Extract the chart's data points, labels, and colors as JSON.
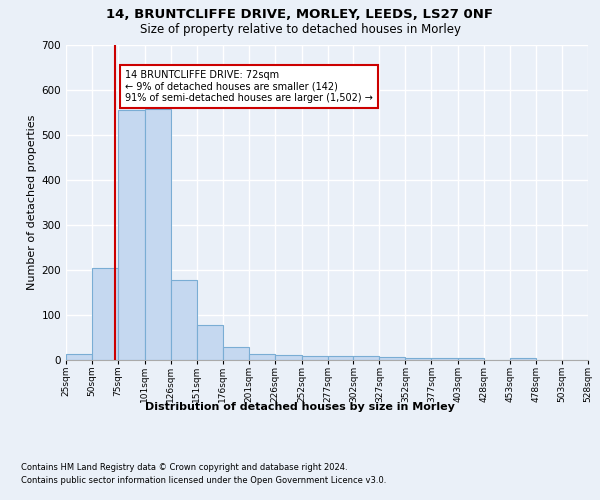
{
  "title1": "14, BRUNTCLIFFE DRIVE, MORLEY, LEEDS, LS27 0NF",
  "title2": "Size of property relative to detached houses in Morley",
  "xlabel": "Distribution of detached houses by size in Morley",
  "ylabel": "Number of detached properties",
  "bin_edges": [
    25,
    50,
    75,
    101,
    126,
    151,
    176,
    201,
    226,
    252,
    277,
    302,
    327,
    352,
    377,
    403,
    428,
    453,
    478,
    503,
    528
  ],
  "bar_heights": [
    13,
    205,
    555,
    558,
    178,
    78,
    30,
    13,
    12,
    9,
    10,
    10,
    7,
    5,
    5,
    5,
    1,
    5,
    1,
    1
  ],
  "bar_color": "#c5d8f0",
  "bar_edgecolor": "#7aadd4",
  "property_size": 72,
  "property_line_color": "#cc0000",
  "annotation_text": "14 BRUNTCLIFFE DRIVE: 72sqm\n← 9% of detached houses are smaller (142)\n91% of semi-detached houses are larger (1,502) →",
  "annotation_box_color": "#ffffff",
  "annotation_box_edgecolor": "#cc0000",
  "ylim": [
    0,
    700
  ],
  "yticks": [
    0,
    100,
    200,
    300,
    400,
    500,
    600,
    700
  ],
  "footnote1": "Contains HM Land Registry data © Crown copyright and database right 2024.",
  "footnote2": "Contains public sector information licensed under the Open Government Licence v3.0.",
  "background_color": "#eaf0f8",
  "plot_background": "#eaf0f8",
  "grid_color": "#ffffff",
  "title1_fontsize": 9.5,
  "title2_fontsize": 8.5,
  "xlabel_fontsize": 8,
  "ylabel_fontsize": 8,
  "footnote_fontsize": 6
}
